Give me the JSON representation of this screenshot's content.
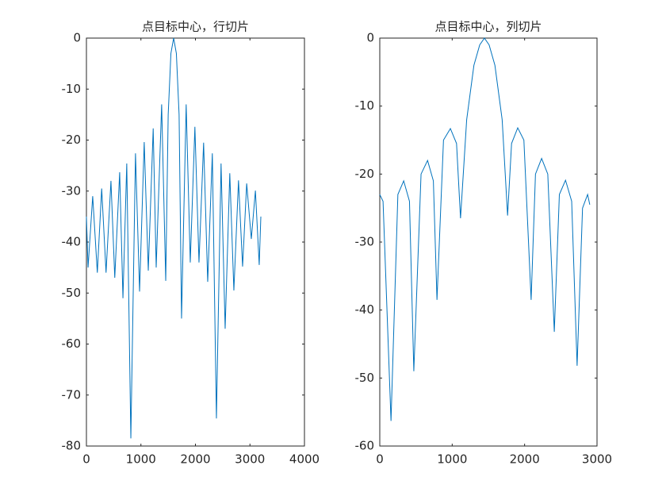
{
  "chart_data": [
    {
      "type": "line",
      "title": "点目标中心，行切片",
      "xlim": [
        0,
        4000
      ],
      "ylim": [
        -80,
        0
      ],
      "xticks": [
        0,
        1000,
        2000,
        3000,
        4000
      ],
      "yticks": [
        -80,
        -70,
        -60,
        -50,
        -40,
        -30,
        -20,
        -10,
        0
      ],
      "series": [
        {
          "color": "#0072bd",
          "x": [
            0,
            30,
            115,
            200,
            280,
            360,
            450,
            520,
            610,
            670,
            740,
            815,
            900,
            975,
            1060,
            1135,
            1225,
            1280,
            1380,
            1455,
            1500,
            1550,
            1600,
            1650,
            1700,
            1745,
            1830,
            1905,
            1990,
            2065,
            2150,
            2225,
            2310,
            2385,
            2470,
            2545,
            2630,
            2705,
            2790,
            2865,
            2940,
            3025,
            3100,
            3170,
            3200
          ],
          "values": [
            -35,
            -45,
            -31,
            -46,
            -29.5,
            -46,
            -28,
            -47,
            -26.3,
            -51,
            -24.6,
            -78.5,
            -22.6,
            -49.7,
            -20.4,
            -45.6,
            -17.7,
            -45,
            -13,
            -47.6,
            -15,
            -3,
            0,
            -3,
            -15,
            -55,
            -13,
            -44,
            -17.4,
            -44,
            -20.5,
            -47.8,
            -22.6,
            -74.6,
            -24.6,
            -57,
            -26.5,
            -49.5,
            -27.9,
            -44.8,
            -28.5,
            -39.4,
            -29.9,
            -44.5,
            -35
          ]
        }
      ]
    },
    {
      "type": "line",
      "title": "点目标中心，列切片",
      "xlim": [
        0,
        3000
      ],
      "ylim": [
        -60,
        0
      ],
      "xticks": [
        0,
        1000,
        2000,
        3000
      ],
      "yticks": [
        -60,
        -50,
        -40,
        -30,
        -20,
        -10,
        0
      ],
      "series": [
        {
          "color": "#0072bd",
          "x": [
            0,
            45,
            155,
            250,
            330,
            410,
            470,
            570,
            660,
            740,
            790,
            880,
            975,
            1060,
            1115,
            1200,
            1300,
            1380,
            1445,
            1510,
            1590,
            1690,
            1765,
            1820,
            1905,
            1990,
            2090,
            2150,
            2235,
            2320,
            2410,
            2480,
            2565,
            2650,
            2725,
            2800,
            2870,
            2900
          ],
          "values": [
            -23,
            -24,
            -56.3,
            -23,
            -21,
            -24,
            -49,
            -20,
            -18,
            -21,
            -38.5,
            -15,
            -13.3,
            -15.5,
            -26.5,
            -12,
            -4,
            -1,
            0,
            -1,
            -4,
            -12,
            -26.1,
            -15.5,
            -13.2,
            -15,
            -38.5,
            -20,
            -17.7,
            -20,
            -43.2,
            -23,
            -20.9,
            -24,
            -48.2,
            -25,
            -23,
            -24.5
          ]
        }
      ]
    }
  ]
}
